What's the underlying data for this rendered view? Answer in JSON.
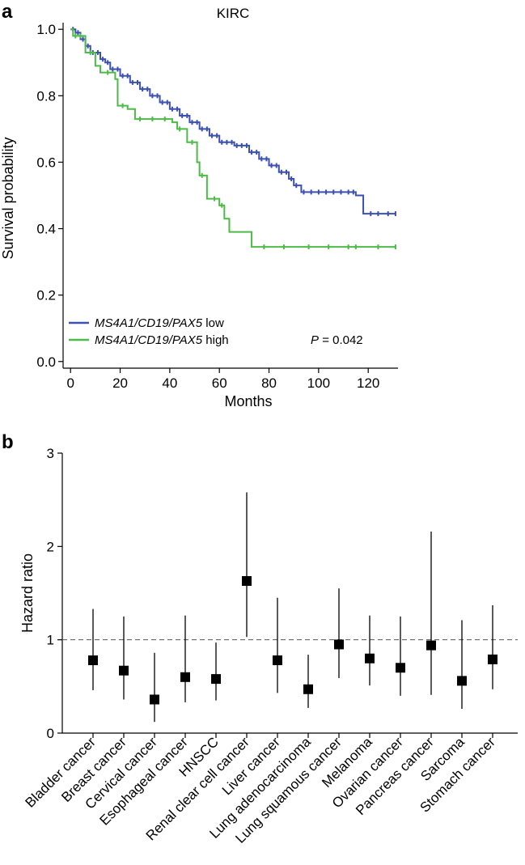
{
  "panels": [
    {
      "letter": "a"
    },
    {
      "letter": "b"
    }
  ],
  "chart_data": [
    {
      "type": "line",
      "subtype": "kaplan-meier",
      "title": "KIRC",
      "xlabel": "Months",
      "ylabel": "Survival probability",
      "xlim": [
        -3,
        132
      ],
      "ylim": [
        -0.02,
        1.02
      ],
      "xticks": [
        0,
        20,
        40,
        60,
        80,
        100,
        120
      ],
      "yticks": [
        0.0,
        0.2,
        0.4,
        0.6,
        0.8,
        1.0
      ],
      "xtick_labels": [
        "0",
        "20",
        "40",
        "60",
        "80",
        "100",
        "120"
      ],
      "ytick_labels": [
        "0.0",
        "0.2",
        "0.4",
        "0.6",
        "0.8",
        "1.0"
      ],
      "legend_position": "bottom-left",
      "annotation": {
        "label": "P",
        "value": "= 0.042"
      },
      "series": [
        {
          "name": "MS4A1/CD19/PAX5 low",
          "name_italic": "MS4A1/CD19/PAX5",
          "name_suffix": " low",
          "color": "#3b50b0",
          "steps": [
            [
              0,
              1.0
            ],
            [
              2,
              0.99
            ],
            [
              4,
              0.97
            ],
            [
              6,
              0.95
            ],
            [
              8,
              0.93
            ],
            [
              12,
              0.91
            ],
            [
              14,
              0.9
            ],
            [
              16,
              0.88
            ],
            [
              20,
              0.86
            ],
            [
              24,
              0.84
            ],
            [
              28,
              0.82
            ],
            [
              32,
              0.8
            ],
            [
              36,
              0.78
            ],
            [
              40,
              0.76
            ],
            [
              44,
              0.74
            ],
            [
              48,
              0.72
            ],
            [
              52,
              0.7
            ],
            [
              56,
              0.68
            ],
            [
              60,
              0.66
            ],
            [
              66,
              0.65
            ],
            [
              72,
              0.63
            ],
            [
              76,
              0.61
            ],
            [
              80,
              0.59
            ],
            [
              84,
              0.57
            ],
            [
              88,
              0.55
            ],
            [
              90,
              0.53
            ],
            [
              93,
              0.51
            ],
            [
              115,
              0.5
            ],
            [
              118,
              0.445
            ],
            [
              131,
              0.445
            ]
          ],
          "censor_x": [
            1,
            3,
            5,
            7,
            9,
            11,
            13,
            15,
            17,
            19,
            21,
            23,
            25,
            27,
            29,
            31,
            33,
            35,
            37,
            39,
            41,
            43,
            45,
            47,
            49,
            51,
            53,
            55,
            57,
            59,
            61,
            63,
            65,
            67,
            69,
            71,
            73,
            75,
            77,
            79,
            81,
            83,
            85,
            87,
            89,
            91,
            94,
            97,
            100,
            103,
            106,
            109,
            112,
            114,
            121,
            124,
            128,
            131
          ]
        },
        {
          "name": "MS4A1/CD19/PAX5 high",
          "name_italic": "MS4A1/CD19/PAX5",
          "name_suffix": " high",
          "color": "#4cbb47",
          "steps": [
            [
              0,
              1.0
            ],
            [
              1,
              0.98
            ],
            [
              6,
              0.93
            ],
            [
              10,
              0.89
            ],
            [
              12,
              0.87
            ],
            [
              18,
              0.85
            ],
            [
              19,
              0.77
            ],
            [
              23,
              0.76
            ],
            [
              26,
              0.73
            ],
            [
              41,
              0.72
            ],
            [
              43,
              0.7
            ],
            [
              47,
              0.66
            ],
            [
              51,
              0.6
            ],
            [
              52,
              0.56
            ],
            [
              55,
              0.49
            ],
            [
              60,
              0.47
            ],
            [
              62,
              0.43
            ],
            [
              64,
              0.39
            ],
            [
              73,
              0.345
            ],
            [
              131,
              0.345
            ]
          ],
          "censor_x": [
            2,
            4,
            8,
            15,
            21,
            28,
            33,
            38,
            44,
            49,
            53,
            58,
            61,
            78,
            86,
            96,
            104,
            112,
            115,
            124,
            131
          ]
        }
      ]
    },
    {
      "type": "scatter",
      "subtype": "forest",
      "xlabel": "",
      "ylabel": "Hazard ratio",
      "ylim": [
        0,
        3
      ],
      "yticks": [
        0,
        1,
        2,
        3
      ],
      "ytick_labels": [
        "0",
        "1",
        "2",
        "3"
      ],
      "reference_line": 1,
      "categories": [
        "Bladder cancer",
        "Breast cancer",
        "Cervical cancer",
        "Esophageal cancer",
        "HNSCC",
        "Renal clear cell cancer",
        "Liver cancer",
        "Lung adenocarcinoma",
        "Lung squamous cancer",
        "Melanoma",
        "Ovarian cancer",
        "Pancreas cancer",
        "Sarcoma",
        "Stomach cancer"
      ],
      "values": [
        0.78,
        0.67,
        0.36,
        0.6,
        0.58,
        1.63,
        0.78,
        0.47,
        0.95,
        0.8,
        0.7,
        0.94,
        0.56,
        0.79
      ],
      "lower": [
        0.46,
        0.36,
        0.12,
        0.33,
        0.35,
        1.03,
        0.43,
        0.27,
        0.59,
        0.51,
        0.4,
        0.41,
        0.26,
        0.47
      ],
      "upper": [
        1.33,
        1.25,
        0.86,
        1.26,
        0.97,
        2.58,
        1.45,
        0.84,
        1.55,
        1.26,
        1.25,
        2.16,
        1.21,
        1.37
      ]
    }
  ]
}
